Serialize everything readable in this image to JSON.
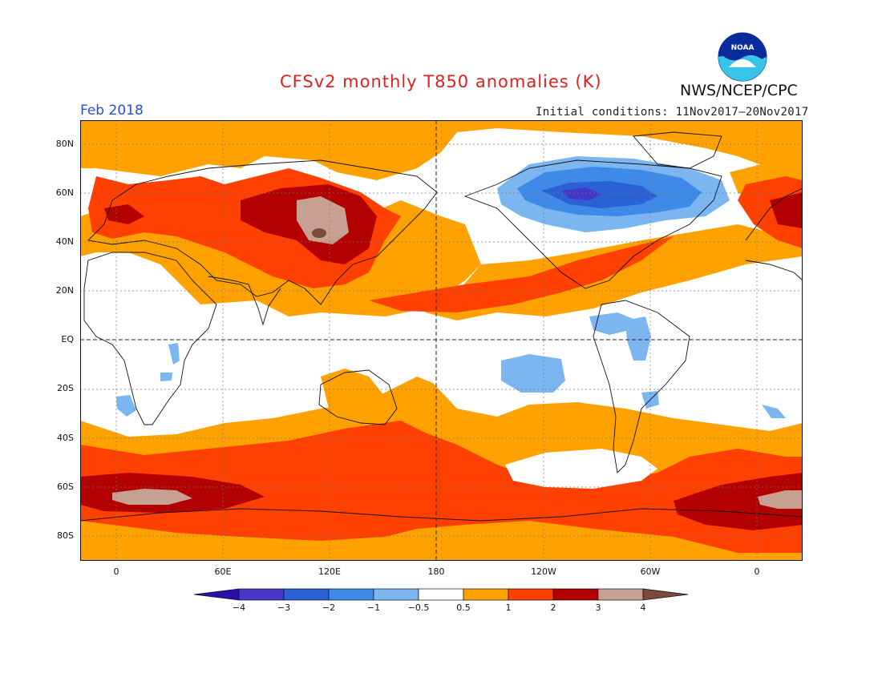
{
  "header": {
    "title": "CFSv2 monthly T850 anomalies (K)",
    "period": "Feb 2018",
    "agency": "NWS/NCEP/CPC",
    "initial_conditions": "Initial conditions: 11Nov2017–20Nov2017",
    "logo_text": "NOAA"
  },
  "axes": {
    "y_labels": [
      "80N",
      "60N",
      "40N",
      "20N",
      "EQ",
      "20S",
      "40S",
      "60S",
      "80S"
    ],
    "x_labels": [
      "0",
      "60E",
      "120E",
      "180",
      "120W",
      "60W",
      "0"
    ]
  },
  "colorbar": {
    "labels": [
      "−4",
      "−3",
      "−2",
      "−1",
      "−0.5",
      "0.5",
      "1",
      "2",
      "3",
      "4"
    ],
    "colors": [
      "#2a0fa8",
      "#4535c8",
      "#2a62d6",
      "#3f8ae8",
      "#7bb6f0",
      "#ffffff",
      "#ffa200",
      "#ff4000",
      "#b30000",
      "#c8a092",
      "#7a4a3a"
    ]
  },
  "map_colors": {
    "ocean_white": "#ffffff",
    "orange": "#ffa200",
    "red_orange": "#ff4000",
    "dark_red": "#b30000",
    "tan": "#c8a092",
    "brown": "#7a4a3a",
    "light_blue": "#7bb6f0",
    "mid_blue": "#3f8ae8",
    "blue": "#2a62d6",
    "dark_blue": "#4535c8"
  }
}
